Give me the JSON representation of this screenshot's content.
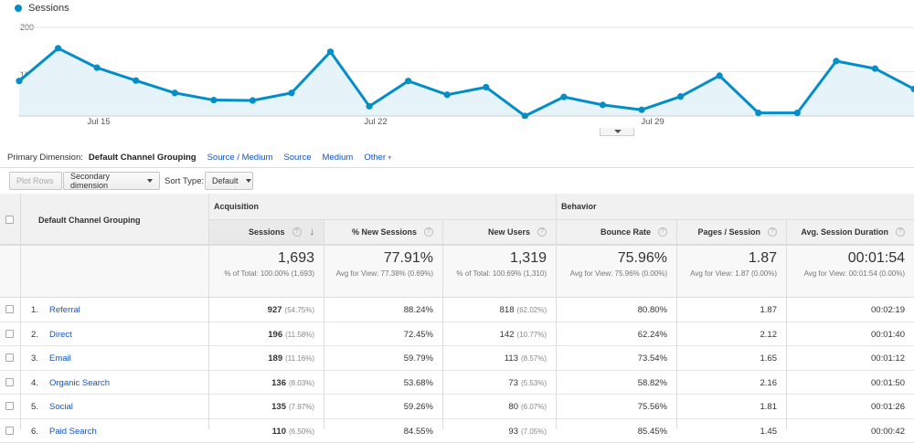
{
  "legend": {
    "label": "Sessions",
    "color": "#058dc7"
  },
  "chart_data": {
    "type": "area",
    "series": [
      {
        "name": "Sessions",
        "values": [
          79,
          153,
          109,
          80,
          52,
          36,
          35,
          52,
          145,
          22,
          79,
          48,
          65,
          0,
          43,
          25,
          14,
          44,
          91,
          7,
          7,
          124,
          107,
          61
        ]
      }
    ],
    "y_ticks": [
      "200",
      "100"
    ],
    "x_ticks": [
      "Jul 15",
      "Jul 22",
      "Jul 29"
    ],
    "color": "#058dc7",
    "grid": true
  },
  "dimension_bar": {
    "label": "Primary Dimension:",
    "active": "Default Channel Grouping",
    "links": [
      "Source / Medium",
      "Source",
      "Medium"
    ],
    "other": "Other"
  },
  "toolbar": {
    "plot_rows": "Plot Rows",
    "secondary_dimension": "Secondary dimension",
    "sort_type_label": "Sort Type:",
    "sort_type_value": "Default"
  },
  "table": {
    "dimension_header": "Default Channel Grouping",
    "groups": {
      "acquisition": "Acquisition",
      "behavior": "Behavior"
    },
    "columns": [
      "Sessions",
      "% New Sessions",
      "New Users",
      "Bounce Rate",
      "Pages / Session",
      "Avg. Session Duration"
    ],
    "totals": [
      {
        "value": "1,693",
        "sub": "% of Total: 100.00% (1,693)"
      },
      {
        "value": "77.91%",
        "sub": "Avg for View: 77.38% (0.69%)"
      },
      {
        "value": "1,319",
        "sub": "% of Total: 100.69% (1,310)"
      },
      {
        "value": "75.96%",
        "sub": "Avg for View: 75.96% (0.00%)"
      },
      {
        "value": "1.87",
        "sub": "Avg for View: 1.87 (0.00%)"
      },
      {
        "value": "00:01:54",
        "sub": "Avg for View: 00:01:54 (0.00%)"
      }
    ],
    "rows": [
      {
        "num": "1.",
        "name": "Referral",
        "sessions": "927",
        "sessions_pct": "(54.75%)",
        "new_pct": "88.24%",
        "new_users": "818",
        "new_users_pct": "(62.02%)",
        "bounce": "80.80%",
        "pages": "1.87",
        "duration": "00:02:19"
      },
      {
        "num": "2.",
        "name": "Direct",
        "sessions": "196",
        "sessions_pct": "(11.58%)",
        "new_pct": "72.45%",
        "new_users": "142",
        "new_users_pct": "(10.77%)",
        "bounce": "62.24%",
        "pages": "2.12",
        "duration": "00:01:40"
      },
      {
        "num": "3.",
        "name": "Email",
        "sessions": "189",
        "sessions_pct": "(11.16%)",
        "new_pct": "59.79%",
        "new_users": "113",
        "new_users_pct": "(8.57%)",
        "bounce": "73.54%",
        "pages": "1.65",
        "duration": "00:01:12"
      },
      {
        "num": "4.",
        "name": "Organic Search",
        "sessions": "136",
        "sessions_pct": "(8.03%)",
        "new_pct": "53.68%",
        "new_users": "73",
        "new_users_pct": "(5.53%)",
        "bounce": "58.82%",
        "pages": "2.16",
        "duration": "00:01:50"
      },
      {
        "num": "5.",
        "name": "Social",
        "sessions": "135",
        "sessions_pct": "(7.97%)",
        "new_pct": "59.26%",
        "new_users": "80",
        "new_users_pct": "(6.07%)",
        "bounce": "75.56%",
        "pages": "1.81",
        "duration": "00:01:26"
      },
      {
        "num": "6.",
        "name": "Paid Search",
        "sessions": "110",
        "sessions_pct": "(6.50%)",
        "new_pct": "84.55%",
        "new_users": "93",
        "new_users_pct": "(7.05%)",
        "bounce": "85.45%",
        "pages": "1.45",
        "duration": "00:00:42"
      }
    ]
  }
}
